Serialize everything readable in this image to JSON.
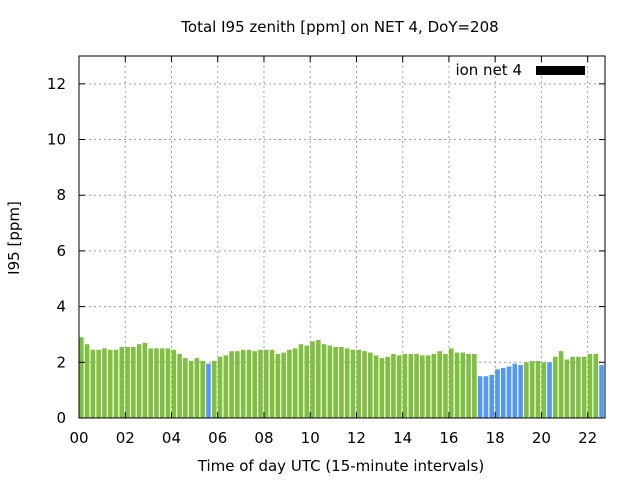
{
  "chart_data": {
    "type": "bar",
    "title": "Total I95 zenith [ppm] on NET 4, DoY=208",
    "xlabel": "Time of day UTC (15-minute intervals)",
    "ylabel": "I95 [ppm]",
    "ylim": [
      0,
      13
    ],
    "yticks": [
      "0",
      "2",
      "4",
      "6",
      "8",
      "10",
      "12"
    ],
    "xticks": [
      "00",
      "02",
      "04",
      "06",
      "08",
      "10",
      "12",
      "14",
      "16",
      "18",
      "20",
      "22"
    ],
    "grid": true,
    "legend_position": "top-right",
    "series": [
      {
        "name": "ion net 4",
        "legend_color": "#000000"
      }
    ],
    "bar_colors": {
      "normal": "#80c040",
      "flagged": "#5599ee"
    },
    "interval_hours": 0.25,
    "values": [
      2.9,
      2.65,
      2.45,
      2.45,
      2.5,
      2.45,
      2.45,
      2.55,
      2.55,
      2.55,
      2.65,
      2.7,
      2.5,
      2.5,
      2.5,
      2.5,
      2.45,
      2.3,
      2.15,
      2.05,
      2.15,
      2.05,
      1.95,
      2.05,
      2.2,
      2.25,
      2.4,
      2.4,
      2.45,
      2.45,
      2.4,
      2.45,
      2.45,
      2.45,
      2.3,
      2.35,
      2.45,
      2.5,
      2.65,
      2.6,
      2.75,
      2.8,
      2.65,
      2.6,
      2.55,
      2.55,
      2.5,
      2.45,
      2.45,
      2.4,
      2.35,
      2.25,
      2.15,
      2.2,
      2.3,
      2.25,
      2.3,
      2.3,
      2.3,
      2.25,
      2.25,
      2.3,
      2.4,
      2.3,
      2.5,
      2.35,
      2.35,
      2.3,
      2.3,
      1.5,
      1.5,
      1.55,
      1.75,
      1.8,
      1.85,
      1.95,
      1.9,
      2.0,
      2.05,
      2.05,
      2.0,
      2.0,
      2.2,
      2.4,
      2.1,
      2.2,
      2.2,
      2.2,
      2.3,
      2.3,
      1.9
    ],
    "flagged": [
      false,
      false,
      false,
      false,
      false,
      false,
      false,
      false,
      false,
      false,
      false,
      false,
      false,
      false,
      false,
      false,
      false,
      false,
      false,
      false,
      false,
      false,
      true,
      false,
      false,
      false,
      false,
      false,
      false,
      false,
      false,
      false,
      false,
      false,
      false,
      false,
      false,
      false,
      false,
      false,
      false,
      false,
      false,
      false,
      false,
      false,
      false,
      false,
      false,
      false,
      false,
      false,
      false,
      false,
      false,
      false,
      false,
      false,
      false,
      false,
      false,
      false,
      false,
      false,
      false,
      false,
      false,
      false,
      false,
      true,
      true,
      true,
      true,
      true,
      true,
      true,
      true,
      false,
      false,
      false,
      false,
      true,
      false,
      false,
      false,
      false,
      false,
      false,
      false,
      false,
      true
    ]
  }
}
